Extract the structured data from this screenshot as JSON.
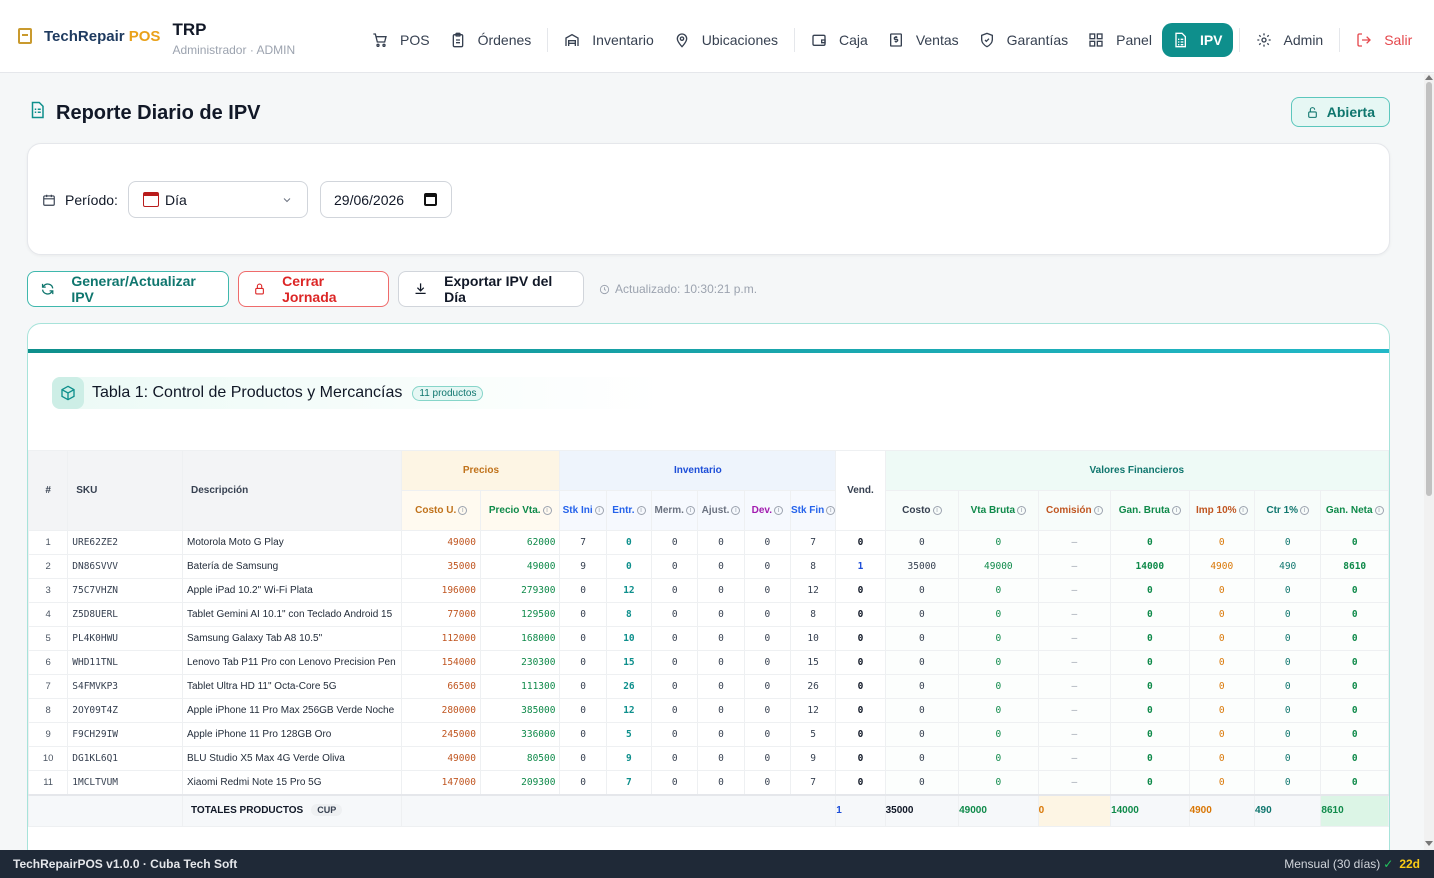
{
  "brand": {
    "name_part1": "TechRepair",
    "name_part2": " POS"
  },
  "org": {
    "code": "TRP",
    "subtitle": "Administrador · ADMIN"
  },
  "nav": [
    {
      "label": "POS",
      "icon": "cart-icon"
    },
    {
      "label": "Órdenes",
      "icon": "clipboard-icon"
    },
    {
      "label": "Inventario",
      "icon": "archive-icon"
    },
    {
      "label": "Ubicaciones",
      "icon": "map-pin-icon"
    },
    {
      "label": "Caja",
      "icon": "wallet-icon"
    },
    {
      "label": "Ventas",
      "icon": "dollar-receipt-icon"
    },
    {
      "label": "Garantías",
      "icon": "shield-check-icon"
    },
    {
      "label": "Panel",
      "icon": "grid-icon"
    },
    {
      "label": "IPV",
      "icon": "report-icon",
      "active": true
    },
    {
      "label": "Admin",
      "icon": "gear-icon"
    },
    {
      "label": "Salir",
      "icon": "logout-icon"
    }
  ],
  "page": {
    "title": "Reporte Diario de IPV",
    "status": "Abierta"
  },
  "filter": {
    "period_label": "Período:",
    "period_value": "Día",
    "date_value": "29/06/2026"
  },
  "actions": {
    "generate": "Generar/Actualizar IPV",
    "close": "Cerrar Jornada",
    "export": "Exportar IPV del Día",
    "updated": "Actualizado: 10:30:21 p.m."
  },
  "table": {
    "title": "Tabla 1: Control de Productos y Mercancías",
    "badge": "11 productos",
    "groups": {
      "num": "#",
      "sku": "SKU",
      "desc": "Descripción",
      "precios": "Precios",
      "inventario": "Inventario",
      "vend": "Vend.",
      "financieros": "Valores Financieros"
    },
    "cols": {
      "costo_u": "Costo U.",
      "precio_vta": "Precio Vta.",
      "stk_ini": "Stk Ini",
      "entr": "Entr.",
      "merm": "Merm.",
      "ajust": "Ajust.",
      "dev": "Dev.",
      "stk_fin": "Stk Fin",
      "costo": "Costo",
      "vta_bruta": "Vta Bruta",
      "comision": "Comisión",
      "gan_bruta": "Gan. Bruta",
      "imp": "Imp 10%",
      "ctr": "Ctr 1%",
      "gan_neta": "Gan. Neta"
    },
    "rows": [
      {
        "n": "1",
        "sku": "URE62ZE2",
        "desc": "Motorola Moto G Play",
        "costo_u": "49000",
        "precio": "62000",
        "ini": "7",
        "entr": "0",
        "merm": "0",
        "ajust": "0",
        "dev": "0",
        "fin": "7",
        "vend": "0",
        "costo": "0",
        "vb": "0",
        "com": "–",
        "gb": "0",
        "imp": "0",
        "ctr": "0",
        "gn": "0"
      },
      {
        "n": "2",
        "sku": "DN86SVVV",
        "desc": "Batería de Samsung",
        "costo_u": "35000",
        "precio": "49000",
        "ini": "9",
        "entr": "0",
        "merm": "0",
        "ajust": "0",
        "dev": "0",
        "fin": "8",
        "vend": "1",
        "costo": "35000",
        "vb": "49000",
        "com": "–",
        "gb": "14000",
        "imp": "4900",
        "ctr": "490",
        "gn": "8610"
      },
      {
        "n": "3",
        "sku": "75C7VHZN",
        "desc": "Apple iPad 10.2\" Wi-Fi Plata",
        "costo_u": "196000",
        "precio": "279300",
        "ini": "0",
        "entr": "12",
        "merm": "0",
        "ajust": "0",
        "dev": "0",
        "fin": "12",
        "vend": "0",
        "costo": "0",
        "vb": "0",
        "com": "–",
        "gb": "0",
        "imp": "0",
        "ctr": "0",
        "gn": "0"
      },
      {
        "n": "4",
        "sku": "Z5D8UERL",
        "desc": "Tablet Gemini AI 10.1\" con Teclado Android 15",
        "costo_u": "77000",
        "precio": "129500",
        "ini": "0",
        "entr": "8",
        "merm": "0",
        "ajust": "0",
        "dev": "0",
        "fin": "8",
        "vend": "0",
        "costo": "0",
        "vb": "0",
        "com": "–",
        "gb": "0",
        "imp": "0",
        "ctr": "0",
        "gn": "0"
      },
      {
        "n": "5",
        "sku": "PL4K0HWU",
        "desc": "Samsung Galaxy Tab A8 10.5\"",
        "costo_u": "112000",
        "precio": "168000",
        "ini": "0",
        "entr": "10",
        "merm": "0",
        "ajust": "0",
        "dev": "0",
        "fin": "10",
        "vend": "0",
        "costo": "0",
        "vb": "0",
        "com": "–",
        "gb": "0",
        "imp": "0",
        "ctr": "0",
        "gn": "0"
      },
      {
        "n": "6",
        "sku": "WHD11TNL",
        "desc": "Lenovo Tab P11 Pro con Lenovo Precision Pen",
        "costo_u": "154000",
        "precio": "230300",
        "ini": "0",
        "entr": "15",
        "merm": "0",
        "ajust": "0",
        "dev": "0",
        "fin": "15",
        "vend": "0",
        "costo": "0",
        "vb": "0",
        "com": "–",
        "gb": "0",
        "imp": "0",
        "ctr": "0",
        "gn": "0"
      },
      {
        "n": "7",
        "sku": "S4FMVKP3",
        "desc": "Tablet Ultra HD 11\" Octa-Core 5G",
        "costo_u": "66500",
        "precio": "111300",
        "ini": "0",
        "entr": "26",
        "merm": "0",
        "ajust": "0",
        "dev": "0",
        "fin": "26",
        "vend": "0",
        "costo": "0",
        "vb": "0",
        "com": "–",
        "gb": "0",
        "imp": "0",
        "ctr": "0",
        "gn": "0"
      },
      {
        "n": "8",
        "sku": "2OY09T4Z",
        "desc": "Apple iPhone 11 Pro Max 256GB Verde Noche",
        "costo_u": "280000",
        "precio": "385000",
        "ini": "0",
        "entr": "12",
        "merm": "0",
        "ajust": "0",
        "dev": "0",
        "fin": "12",
        "vend": "0",
        "costo": "0",
        "vb": "0",
        "com": "–",
        "gb": "0",
        "imp": "0",
        "ctr": "0",
        "gn": "0"
      },
      {
        "n": "9",
        "sku": "F9CH29IW",
        "desc": "Apple iPhone 11 Pro 128GB Oro",
        "costo_u": "245000",
        "precio": "336000",
        "ini": "0",
        "entr": "5",
        "merm": "0",
        "ajust": "0",
        "dev": "0",
        "fin": "5",
        "vend": "0",
        "costo": "0",
        "vb": "0",
        "com": "–",
        "gb": "0",
        "imp": "0",
        "ctr": "0",
        "gn": "0"
      },
      {
        "n": "10",
        "sku": "DG1KL6Q1",
        "desc": "BLU Studio X5 Max 4G Verde Oliva",
        "costo_u": "49000",
        "precio": "80500",
        "ini": "0",
        "entr": "9",
        "merm": "0",
        "ajust": "0",
        "dev": "0",
        "fin": "9",
        "vend": "0",
        "costo": "0",
        "vb": "0",
        "com": "–",
        "gb": "0",
        "imp": "0",
        "ctr": "0",
        "gn": "0"
      },
      {
        "n": "11",
        "sku": "1MCLTVUM",
        "desc": "Xiaomi Redmi Note 15 Pro 5G",
        "costo_u": "147000",
        "precio": "209300",
        "ini": "0",
        "entr": "7",
        "merm": "0",
        "ajust": "0",
        "dev": "0",
        "fin": "7",
        "vend": "0",
        "costo": "0",
        "vb": "0",
        "com": "–",
        "gb": "0",
        "imp": "0",
        "ctr": "0",
        "gn": "0"
      }
    ],
    "totals": {
      "label": "TOTALES PRODUCTOS",
      "currency": "CUP",
      "vend": "1",
      "costo": "35000",
      "vb": "49000",
      "com": "0",
      "gb": "14000",
      "imp": "4900",
      "ctr": "490",
      "gn": "8610"
    }
  },
  "footer": {
    "version": "TechRepairPOS v1.0.0 · Cuba Tech Soft",
    "plan": "Mensual (30 días)",
    "check": "✓",
    "days": "22d"
  }
}
